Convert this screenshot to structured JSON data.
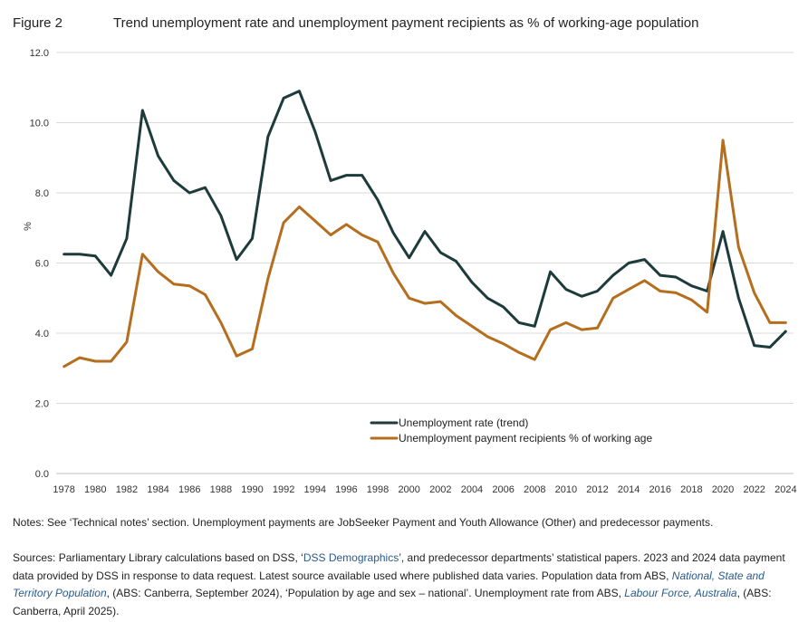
{
  "header": {
    "figure_label": "Figure 2",
    "title": "Trend unemployment rate and unemployment payment recipients as % of working-age population"
  },
  "chart_data": {
    "type": "line",
    "title": "Trend unemployment rate and unemployment payment recipients as % of working-age population",
    "xlabel": "",
    "ylabel": "%",
    "ylim": [
      0,
      12
    ],
    "yticks": [
      "0.0",
      "2.0",
      "4.0",
      "6.0",
      "8.0",
      "10.0",
      "12.0"
    ],
    "xticks": [
      "1978",
      "1980",
      "1982",
      "1984",
      "1986",
      "1988",
      "1990",
      "1992",
      "1994",
      "1996",
      "1998",
      "2000",
      "2002",
      "2004",
      "2006",
      "2008",
      "2010",
      "2012",
      "2014",
      "2016",
      "2018",
      "2020",
      "2022",
      "2024"
    ],
    "grid": "horizontal",
    "legend_position": "bottom-center",
    "x": [
      1978,
      1979,
      1980,
      1981,
      1982,
      1983,
      1984,
      1985,
      1986,
      1987,
      1988,
      1989,
      1990,
      1991,
      1992,
      1993,
      1994,
      1995,
      1996,
      1997,
      1998,
      1999,
      2000,
      2001,
      2002,
      2003,
      2004,
      2005,
      2006,
      2007,
      2008,
      2009,
      2010,
      2011,
      2012,
      2013,
      2014,
      2015,
      2016,
      2017,
      2018,
      2019,
      2020,
      2021,
      2022,
      2023,
      2024
    ],
    "series": [
      {
        "name": "Unemployment rate (trend)",
        "color": "#1d3b3a",
        "values": [
          6.25,
          6.25,
          6.2,
          5.65,
          6.7,
          10.35,
          9.05,
          8.35,
          8.0,
          8.15,
          7.35,
          6.1,
          6.7,
          9.6,
          10.7,
          10.9,
          9.75,
          8.35,
          8.5,
          8.5,
          7.8,
          6.85,
          6.15,
          6.9,
          6.3,
          6.05,
          5.45,
          5.0,
          4.75,
          4.3,
          4.2,
          5.75,
          5.25,
          5.05,
          5.2,
          5.65,
          6.0,
          6.1,
          5.65,
          5.6,
          5.35,
          5.2,
          6.9,
          5.0,
          3.65,
          3.6,
          4.05
        ]
      },
      {
        "name": "Unemployment payment recipients % of working age",
        "color": "#b46e1e",
        "values": [
          3.05,
          3.3,
          3.2,
          3.2,
          3.75,
          6.25,
          5.75,
          5.4,
          5.35,
          5.1,
          4.3,
          3.35,
          3.55,
          5.55,
          7.15,
          7.6,
          7.2,
          6.8,
          7.1,
          6.8,
          6.6,
          5.7,
          5.0,
          4.85,
          4.9,
          4.5,
          4.2,
          3.9,
          3.7,
          3.45,
          3.25,
          4.1,
          4.3,
          4.1,
          4.15,
          5.0,
          5.25,
          5.5,
          5.2,
          5.15,
          4.95,
          4.6,
          9.5,
          6.45,
          5.15,
          4.3,
          4.3
        ]
      }
    ]
  },
  "notes": {
    "text": "Notes: See ‘Technical notes’ section. Unemployment payments are JobSeeker Payment and Youth Allowance (Other) and predecessor payments."
  },
  "sources": {
    "part1": "Sources: Parliamentary Library calculations based on DSS, ‘",
    "link1": "DSS Demographics",
    "part2": "’, and predecessor departments’ statistical papers. 2023 and 2024 data payment data provided by DSS in response to data request. Latest source available used where published data varies. Population data from ABS, ",
    "link2": "National, State and Territory Population",
    "part3": ", (ABS: Canberra, September 2024), ‘Population by age and sex – national’. Unemployment rate from ABS, ",
    "link3": "Labour Force, Australia",
    "part4": ", (ABS: Canberra, April 2025)."
  }
}
